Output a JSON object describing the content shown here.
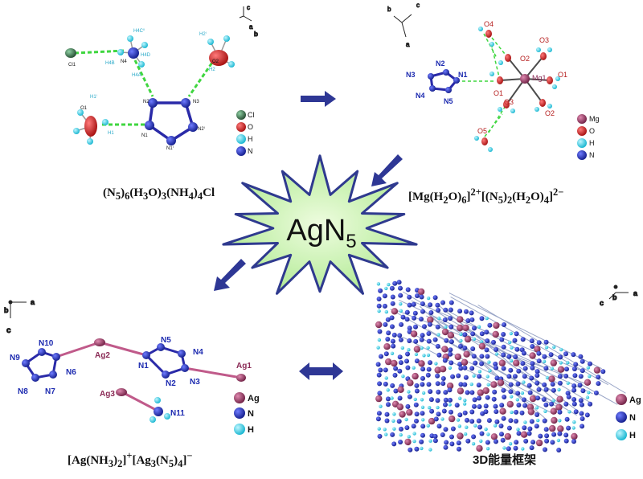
{
  "center": {
    "label": "AgN",
    "subscript": "5"
  },
  "panels": {
    "top_left": {
      "caption_html": "(N<sub>5</sub>)<sub>6</sub>(H<sub>3</sub>O)<sub>3</sub>(NH<sub>4</sub>)<sub>4</sub>Cl",
      "atom_labels": [
        "Cl1",
        "N4",
        "N2",
        "N3",
        "N1",
        "O1",
        "O2",
        "N1ⁱ",
        "N2ⁱ",
        "H4A",
        "H4B",
        "H4D",
        "H4Cⁱⁱ",
        "H1",
        "H2",
        "H1ⁱ",
        "H2ⁱ"
      ],
      "axes": [
        "c",
        "a",
        "b"
      ],
      "legend": [
        {
          "symbol": "Cl",
          "color": "#3f6e4f"
        },
        {
          "symbol": "O",
          "color": "#d62b2b"
        },
        {
          "symbol": "H",
          "color": "#26cfe6"
        },
        {
          "symbol": "N",
          "color": "#1d2bb0"
        }
      ]
    },
    "top_right": {
      "caption_html": "[Mg(H<sub>2</sub>O)<sub>6</sub>]<sup>2+</sup>[(N<sub>5</sub>)<sub>2</sub>(H<sub>2</sub>O)<sub>4</sub>]<sup>2−</sup>",
      "atom_labels": [
        "N2",
        "N3",
        "N1",
        "N4",
        "N5",
        "O4",
        "O3",
        "O2",
        "O1",
        "Mg1",
        "O1",
        "O3",
        "O2",
        "O5"
      ],
      "axes": [
        "b",
        "c",
        "a"
      ],
      "legend": [
        {
          "symbol": "Mg",
          "color": "#9c3b65"
        },
        {
          "symbol": "O",
          "color": "#d62b2b"
        },
        {
          "symbol": "H",
          "color": "#26cfe6"
        },
        {
          "symbol": "N",
          "color": "#1d2bb0"
        }
      ]
    },
    "bottom_left": {
      "caption_html": "[Ag(NH<sub>3</sub>)<sub>2</sub>]<sup>+</sup>[Ag<sub>3</sub>(N<sub>5</sub>)<sub>4</sub>]<sup>−</sup>",
      "atom_labels": [
        "N10",
        "N9",
        "N6",
        "N8",
        "N7",
        "Ag2",
        "N5",
        "N4",
        "N1",
        "N2",
        "N3",
        "Ag1",
        "Ag3",
        "N11"
      ],
      "axes": [
        "b",
        "a",
        "c"
      ],
      "legend": [
        {
          "symbol": "Ag",
          "color": "#9c3b65"
        },
        {
          "symbol": "N",
          "color": "#1d2bb0"
        },
        {
          "symbol": "H",
          "color": "#26cfe6"
        }
      ]
    },
    "bottom_right": {
      "caption": "3D能量框架",
      "axes": [
        "c",
        "b",
        "a"
      ],
      "legend": [
        {
          "symbol": "Ag",
          "color": "#9c3b65"
        },
        {
          "symbol": "N",
          "color": "#1d2bb0"
        },
        {
          "symbol": "H",
          "color": "#26cfe6"
        }
      ]
    }
  },
  "colors": {
    "arrow": "#2e3795",
    "star_fill": "#c8f0ae",
    "star_edge": "#2f3a8f",
    "hbond": "#3fd63f",
    "bond": "#4b4b4b"
  }
}
